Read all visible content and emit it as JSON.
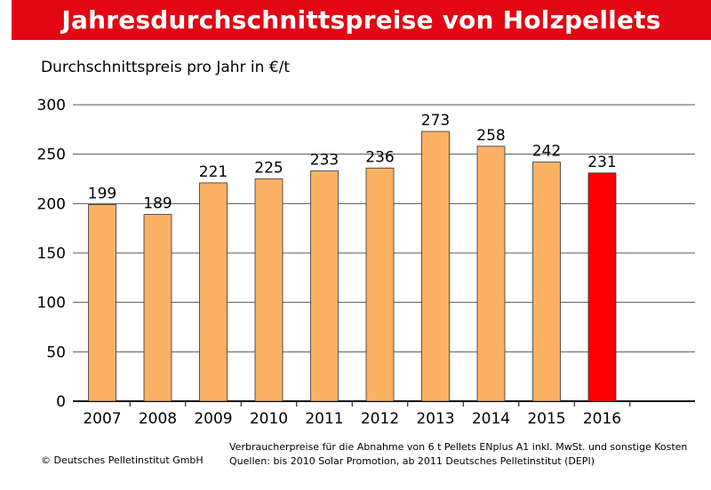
{
  "header": {
    "title": "Jahresdurchschnittspreise von Holzpellets"
  },
  "colors": {
    "title_bar": "#e30613",
    "bar_default": "#fbb165",
    "bar_highlight": "#ff0000",
    "grid": "#555555"
  },
  "chart_data": {
    "type": "bar",
    "title": "Jahresdurchschnittspreise von Holzpellets",
    "ylabel": "Durchschnittspreis pro Jahr in €/t",
    "xlabel": "",
    "categories": [
      "2007",
      "2008",
      "2009",
      "2010",
      "2011",
      "2012",
      "2013",
      "2014",
      "2015",
      "2016"
    ],
    "values": [
      199,
      189,
      221,
      225,
      233,
      236,
      273,
      258,
      242,
      231
    ],
    "ylim": [
      0,
      300
    ],
    "yticks": [
      0,
      50,
      100,
      150,
      200,
      250,
      300
    ],
    "grid": true,
    "highlight_category": "2016"
  },
  "footer": {
    "copyright": "© Deutsches Pelletinstitut GmbH",
    "note_line1": "Verbraucherpreise für die Abnahme von 6 t Pellets ENplus A1 inkl. MwSt. und sonstige Kosten",
    "note_line2": "Quellen: bis 2010 Solar Promotion, ab 2011 Deutsches Pelletinstitut (DEPI)"
  }
}
